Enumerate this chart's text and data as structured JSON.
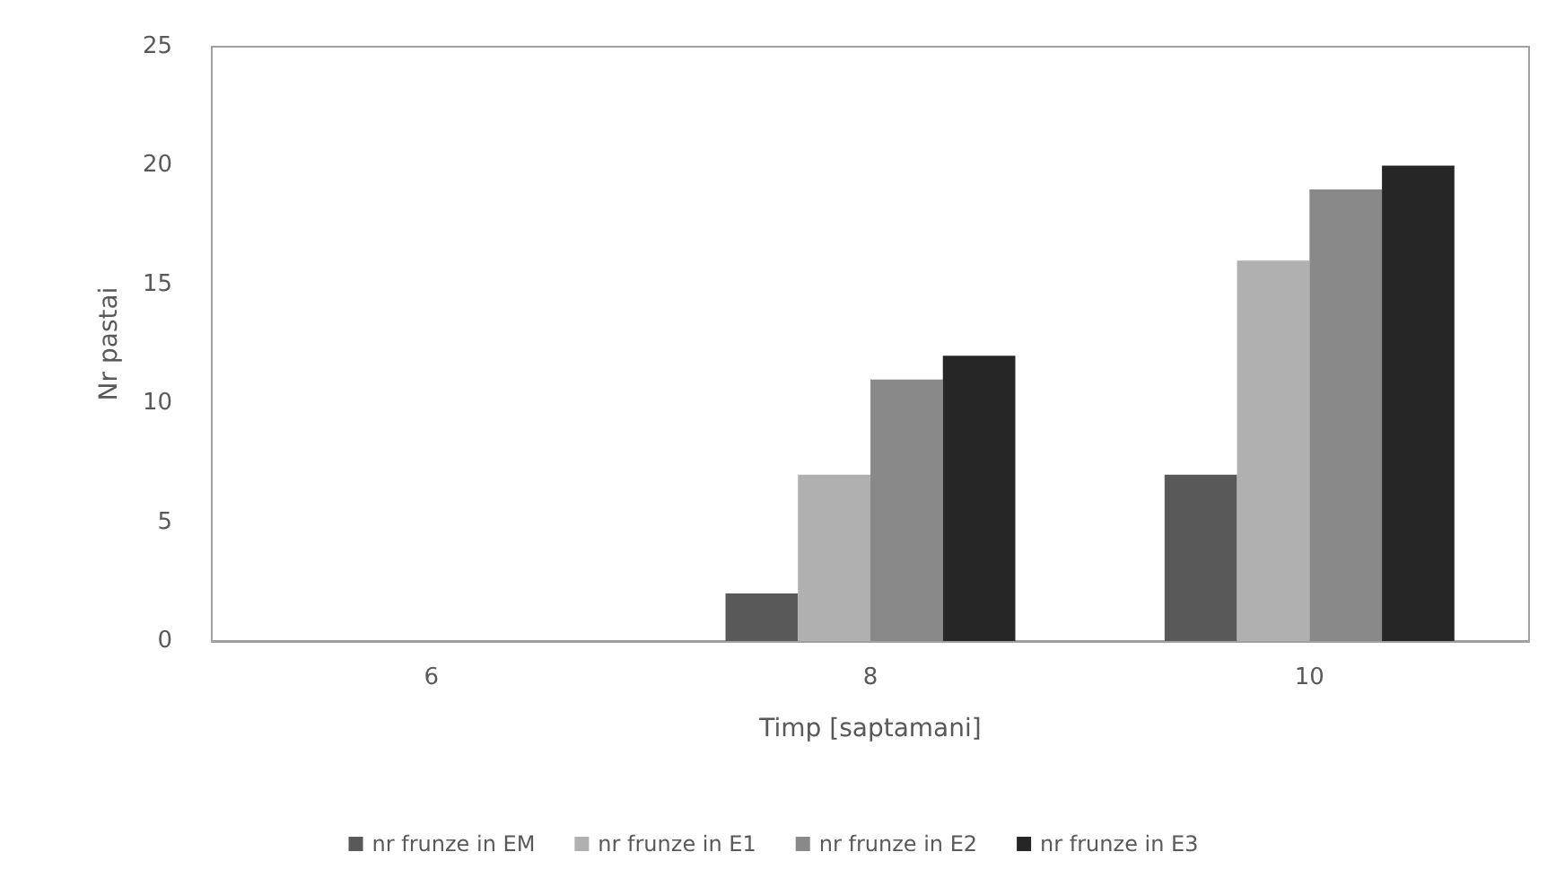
{
  "chart_data": {
    "type": "bar",
    "xlabel": "Timp [saptamani]",
    "ylabel": "Nr pastai",
    "categories": [
      "6",
      "8",
      "10"
    ],
    "series": [
      {
        "name": "nr frunze in EM",
        "color": "#595959",
        "values": [
          0,
          2,
          7
        ]
      },
      {
        "name": "nr frunze in E1",
        "color": "#b0b0b0",
        "values": [
          0,
          7,
          16
        ]
      },
      {
        "name": "nr frunze in E2",
        "color": "#898989",
        "values": [
          0,
          11,
          19
        ]
      },
      {
        "name": "nr frunze in E3",
        "color": "#262626",
        "values": [
          0,
          12,
          20
        ]
      }
    ],
    "ylim": [
      0,
      25
    ],
    "yticks": [
      0,
      5,
      10,
      15,
      20,
      25
    ],
    "grid": false,
    "legend": "bottom"
  }
}
